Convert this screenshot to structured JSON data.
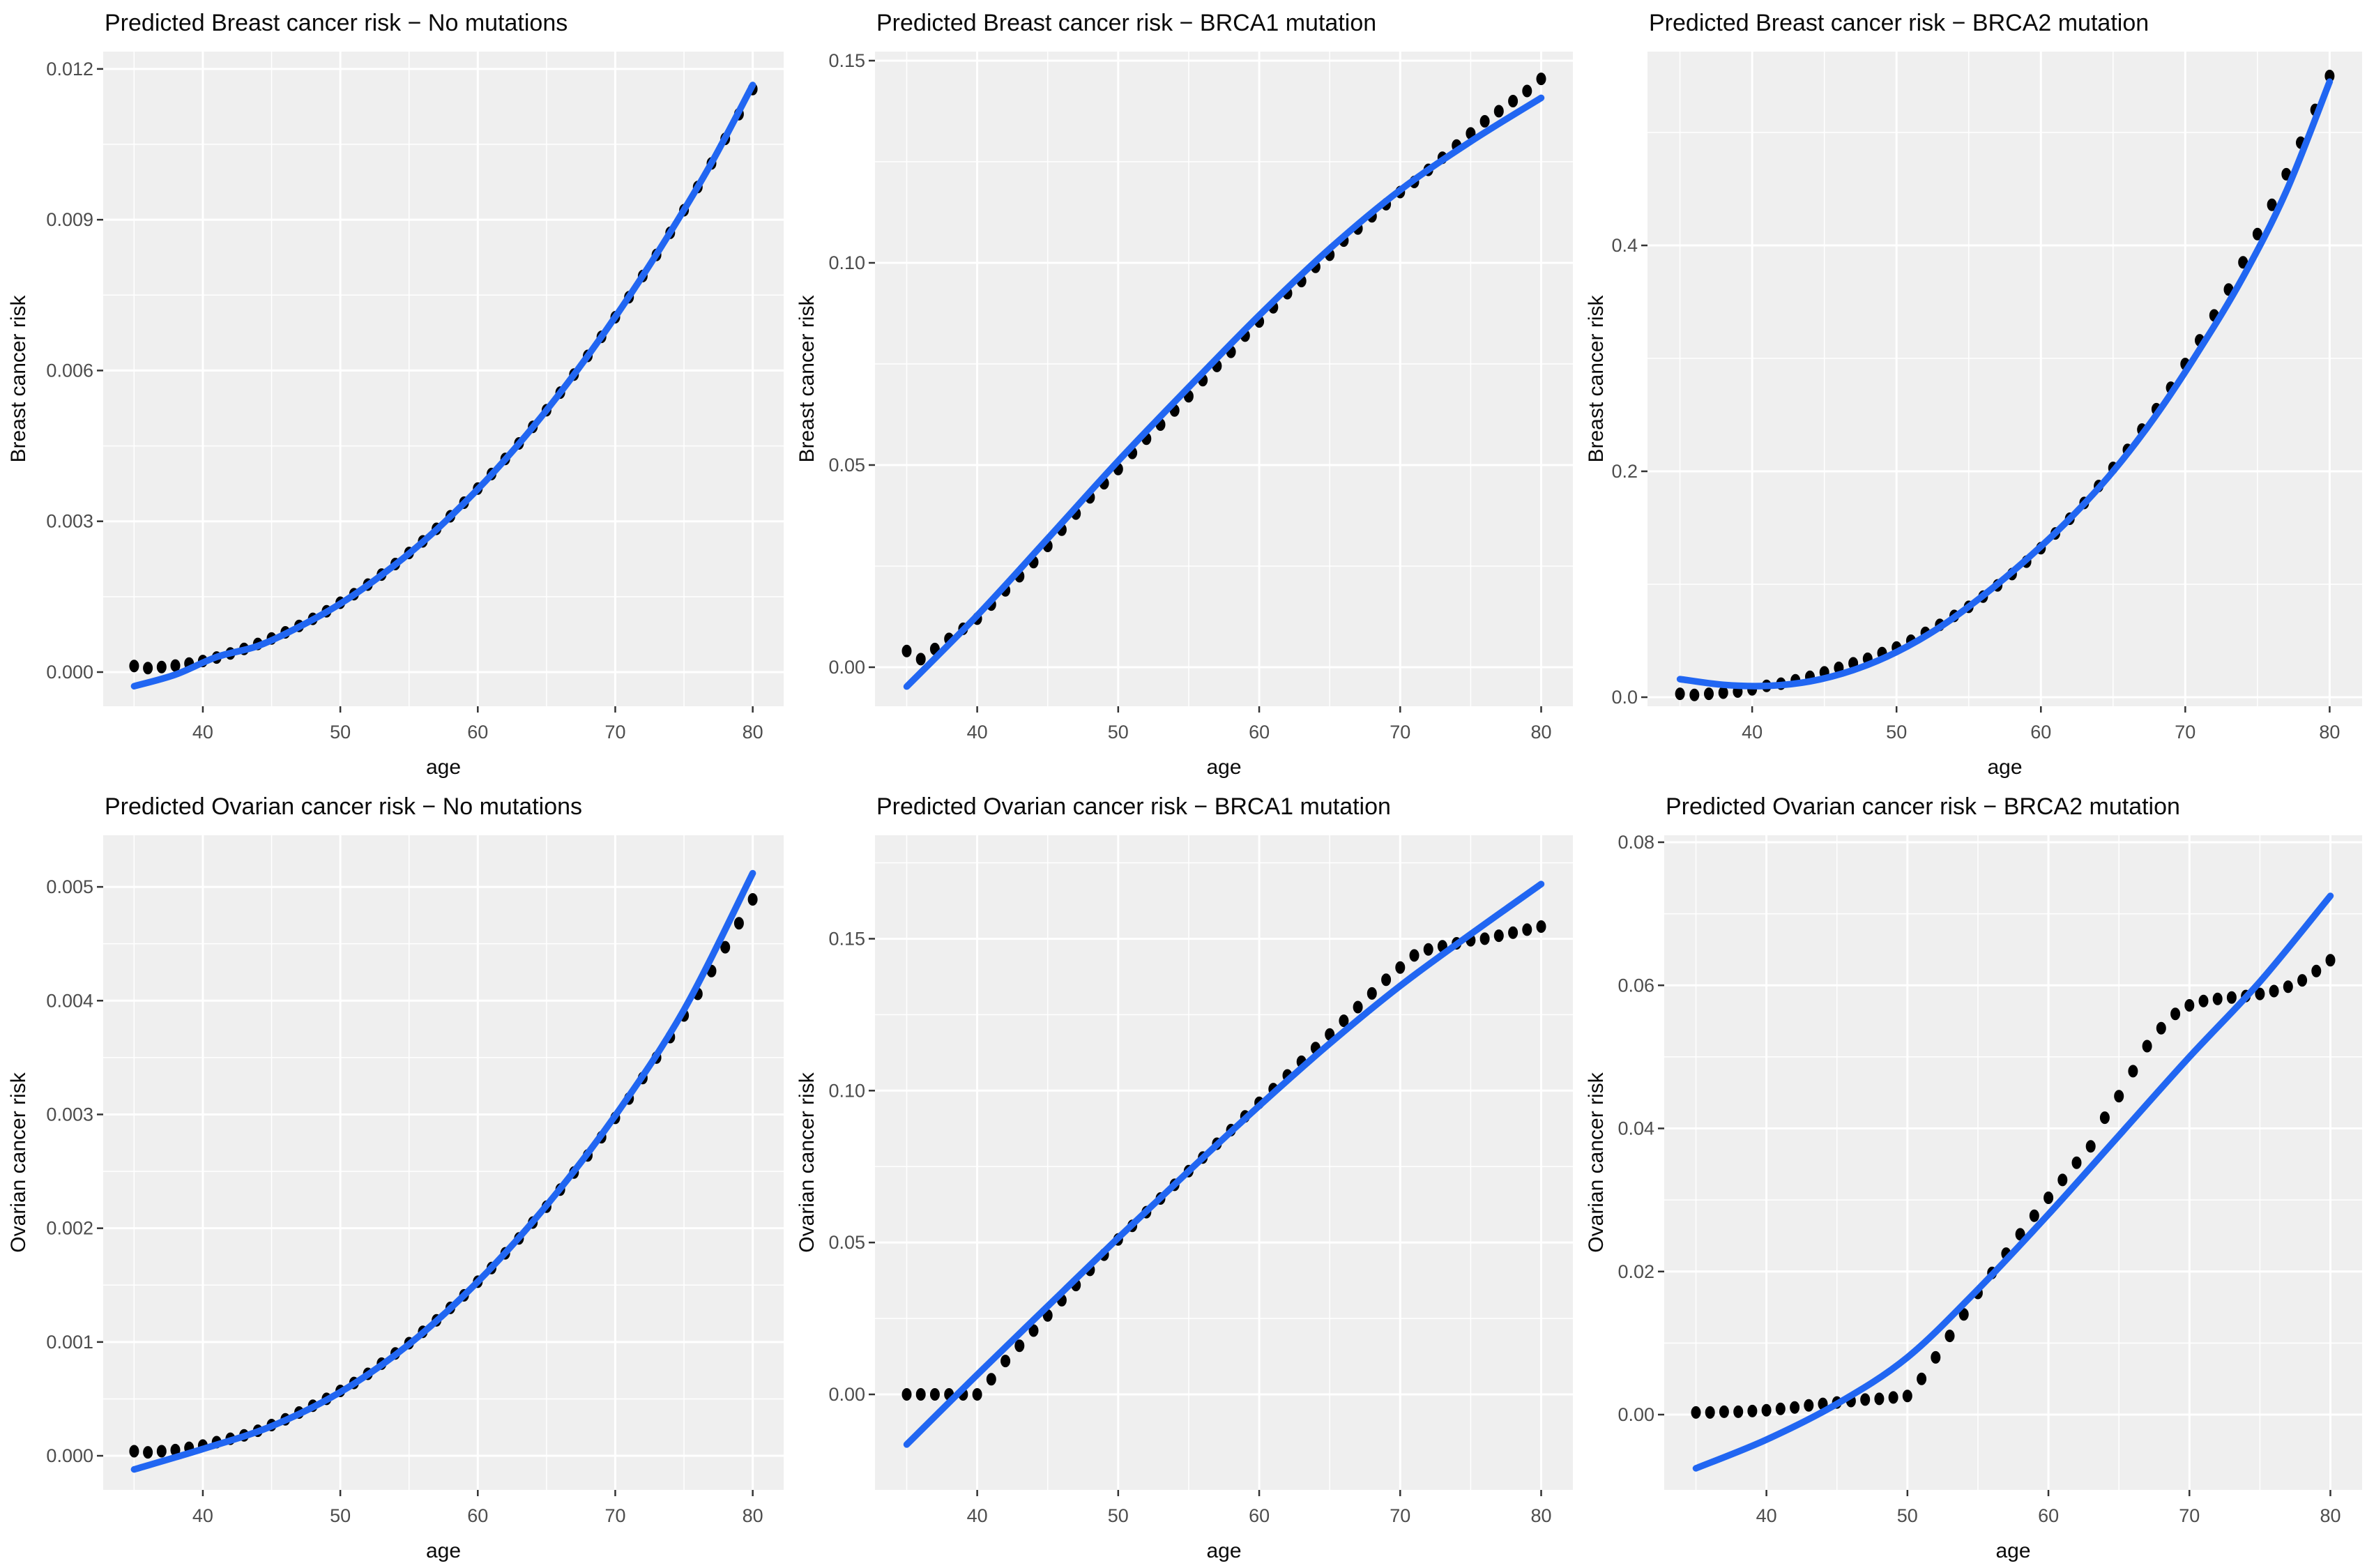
{
  "figure": {
    "rows": 2,
    "cols": 3,
    "background": "#ffffff"
  },
  "styles": {
    "panel_background": "#EFEFEF",
    "grid_color": "#FFFFFF",
    "dot_color": "#000000",
    "smooth_line_color": "#2166F2",
    "tick_mark_color": "#333333",
    "tick_label_color": "#4D4D4D",
    "title_color": "#0A0A0A",
    "axis_title_color": "#0A0A0A"
  },
  "ages": [
    35,
    36,
    37,
    38,
    39,
    40,
    41,
    42,
    43,
    44,
    45,
    46,
    47,
    48,
    49,
    50,
    51,
    52,
    53,
    54,
    55,
    56,
    57,
    58,
    59,
    60,
    61,
    62,
    63,
    64,
    65,
    66,
    67,
    68,
    69,
    70,
    71,
    72,
    73,
    74,
    75,
    76,
    77,
    78,
    79,
    80
  ],
  "chart_data": [
    {
      "type": "scatter",
      "title": "Predicted Breast cancer risk − No mutations",
      "xlabel": "age",
      "ylabel": "Breast cancer risk",
      "xlim": [
        32.75,
        82.25
      ],
      "ylim": [
        -0.00068,
        0.012345
      ],
      "x_ticks": {
        "values": [
          40,
          50,
          60,
          70,
          80
        ],
        "labels": [
          "40",
          "50",
          "60",
          "70",
          "80"
        ]
      },
      "x_minor": [
        35,
        45,
        55,
        65,
        75
      ],
      "y_ticks": {
        "values": [
          0,
          0.003,
          0.006,
          0.009,
          0.012
        ],
        "labels": [
          "0.000",
          "0.003",
          "0.006",
          "0.009",
          "0.012"
        ]
      },
      "y_minor": [
        0.0015,
        0.0045,
        0.0075,
        0.0105
      ],
      "points": [
        0.00012,
        8e-05,
        0.0001,
        0.00013,
        0.00017,
        0.00022,
        0.00029,
        0.00037,
        0.00046,
        0.00056,
        0.00067,
        0.00079,
        0.00092,
        0.00106,
        0.00121,
        0.00138,
        0.00155,
        0.00174,
        0.00194,
        0.00215,
        0.00237,
        0.0026,
        0.00285,
        0.0031,
        0.00337,
        0.00365,
        0.00394,
        0.00424,
        0.00455,
        0.00488,
        0.00521,
        0.00556,
        0.00592,
        0.00629,
        0.00667,
        0.00706,
        0.00746,
        0.00788,
        0.0083,
        0.00874,
        0.00919,
        0.00965,
        0.01012,
        0.01061,
        0.0111,
        0.0116
      ],
      "smooth_line": {
        "x": [
          35,
          38,
          41,
          44,
          47,
          50,
          53,
          56,
          59,
          62,
          65,
          68,
          71,
          74,
          77,
          80
        ],
        "y": [
          -0.00028,
          -5e-05,
          0.0003,
          0.00052,
          0.0009,
          0.00136,
          0.00193,
          0.00259,
          0.00336,
          0.00423,
          0.00521,
          0.00629,
          0.00747,
          0.00875,
          0.01013,
          0.01168
        ]
      }
    },
    {
      "type": "scatter",
      "title": "Predicted Breast cancer risk − BRCA1 mutation",
      "xlabel": "age",
      "ylabel": "Breast cancer risk",
      "xlim": [
        32.75,
        82.25
      ],
      "ylim": [
        -0.009655,
        0.152241
      ],
      "x_ticks": {
        "values": [
          40,
          50,
          60,
          70,
          80
        ],
        "labels": [
          "40",
          "50",
          "60",
          "70",
          "80"
        ]
      },
      "x_minor": [
        35,
        45,
        55,
        65,
        75
      ],
      "y_ticks": {
        "values": [
          0,
          0.05,
          0.1,
          0.15
        ],
        "labels": [
          "0.00",
          "0.05",
          "0.10",
          "0.15"
        ]
      },
      "y_minor": [
        0.025,
        0.075,
        0.125
      ],
      "points": [
        0.004,
        0.002,
        0.0045,
        0.007,
        0.0095,
        0.012,
        0.0155,
        0.019,
        0.0225,
        0.026,
        0.03,
        0.034,
        0.038,
        0.042,
        0.0455,
        0.049,
        0.053,
        0.0565,
        0.06,
        0.0635,
        0.067,
        0.071,
        0.0745,
        0.078,
        0.082,
        0.0855,
        0.089,
        0.0925,
        0.0955,
        0.099,
        0.102,
        0.1055,
        0.1085,
        0.1115,
        0.1145,
        0.1175,
        0.12,
        0.123,
        0.126,
        0.129,
        0.132,
        0.135,
        0.1375,
        0.14,
        0.1425,
        0.1455
      ],
      "smooth_line": {
        "x": [
          35,
          40,
          45,
          50,
          55,
          60,
          65,
          70,
          75,
          80
        ],
        "y": [
          -0.0048,
          0.0128,
          0.0318,
          0.051,
          0.0692,
          0.087,
          0.1035,
          0.118,
          0.13,
          0.1408
        ]
      }
    },
    {
      "type": "scatter",
      "title": "Predicted Breast cancer risk − BRCA2 mutation",
      "xlabel": "age",
      "ylabel": "Breast cancer risk",
      "xlim": [
        32.75,
        82.25
      ],
      "ylim": [
        -0.008025,
        0.571605
      ],
      "x_ticks": {
        "values": [
          40,
          50,
          60,
          70,
          80
        ],
        "labels": [
          "40",
          "50",
          "60",
          "70",
          "80"
        ]
      },
      "x_minor": [
        35,
        45,
        55,
        65,
        75
      ],
      "y_ticks": {
        "values": [
          0,
          0.2,
          0.4
        ],
        "labels": [
          "0.0",
          "0.2",
          "0.4"
        ]
      },
      "y_minor": [
        0.1,
        0.3,
        0.5
      ],
      "points": [
        0.003,
        0.002,
        0.003,
        0.004,
        0.005,
        0.007,
        0.01,
        0.012,
        0.015,
        0.018,
        0.022,
        0.026,
        0.03,
        0.034,
        0.039,
        0.044,
        0.05,
        0.057,
        0.064,
        0.072,
        0.08,
        0.089,
        0.099,
        0.109,
        0.12,
        0.132,
        0.145,
        0.158,
        0.172,
        0.187,
        0.203,
        0.219,
        0.237,
        0.255,
        0.274,
        0.295,
        0.316,
        0.338,
        0.361,
        0.385,
        0.41,
        0.436,
        0.463,
        0.491,
        0.52,
        0.55
      ],
      "smooth_line": {
        "x": [
          35,
          38,
          41,
          44,
          47,
          50,
          53,
          56,
          59,
          62,
          65,
          68,
          71,
          74,
          77,
          80
        ],
        "y": [
          0.016,
          0.011,
          0.01,
          0.014,
          0.024,
          0.04,
          0.062,
          0.09,
          0.122,
          0.158,
          0.2,
          0.25,
          0.308,
          0.372,
          0.448,
          0.545
        ]
      }
    },
    {
      "type": "scatter",
      "title": "Predicted Ovarian cancer risk − No mutations",
      "xlabel": "age",
      "ylabel": "Ovarian cancer risk",
      "xlim": [
        32.75,
        82.25
      ],
      "ylim": [
        -0.0003,
        0.005454
      ],
      "x_ticks": {
        "values": [
          40,
          50,
          60,
          70,
          80
        ],
        "labels": [
          "40",
          "50",
          "60",
          "70",
          "80"
        ]
      },
      "x_minor": [
        35,
        45,
        55,
        65,
        75
      ],
      "y_ticks": {
        "values": [
          0,
          0.001,
          0.002,
          0.003,
          0.004,
          0.005
        ],
        "labels": [
          "0.000",
          "0.001",
          "0.002",
          "0.003",
          "0.004",
          "0.005"
        ]
      },
      "y_minor": [
        0.0005,
        0.0015,
        0.0025,
        0.0035,
        0.0045
      ],
      "points": [
        4e-05,
        3e-05,
        4e-05,
        5e-05,
        7e-05,
        9e-05,
        0.00012,
        0.00015,
        0.00018,
        0.00022,
        0.00027,
        0.00032,
        0.00038,
        0.00044,
        0.0005,
        0.00057,
        0.00064,
        0.00072,
        0.00081,
        0.0009,
        0.00099,
        0.00109,
        0.00119,
        0.0013,
        0.00141,
        0.00153,
        0.00165,
        0.00178,
        0.00191,
        0.00205,
        0.00219,
        0.00234,
        0.00249,
        0.00264,
        0.0028,
        0.00297,
        0.00314,
        0.00332,
        0.0035,
        0.00368,
        0.00387,
        0.00406,
        0.00426,
        0.00447,
        0.00468,
        0.00489
      ],
      "smooth_line": {
        "x": [
          35,
          40,
          45,
          50,
          55,
          60,
          65,
          70,
          75,
          80
        ],
        "y": [
          -0.00012,
          6e-05,
          0.00026,
          0.00056,
          0.00098,
          0.00153,
          0.0022,
          0.00299,
          0.00392,
          0.00512
        ]
      }
    },
    {
      "type": "scatter",
      "title": "Predicted Ovarian cancer risk − BRCA1 mutation",
      "xlabel": "age",
      "ylabel": "Ovarian cancer risk",
      "xlim": [
        32.75,
        82.25
      ],
      "ylim": [
        -0.031444,
        0.184071
      ],
      "x_ticks": {
        "values": [
          40,
          50,
          60,
          70,
          80
        ],
        "labels": [
          "40",
          "50",
          "60",
          "70",
          "80"
        ]
      },
      "x_minor": [
        35,
        45,
        55,
        65,
        75
      ],
      "y_ticks": {
        "values": [
          0,
          0.05,
          0.1,
          0.15
        ],
        "labels": [
          "0.00",
          "0.05",
          "0.10",
          "0.15"
        ]
      },
      "y_minor": [
        0.025,
        0.075,
        0.125,
        0.175
      ],
      "points": [
        0.0,
        0.0,
        0.0,
        0.0,
        0.0,
        0.0,
        0.005,
        0.011,
        0.016,
        0.021,
        0.026,
        0.031,
        0.036,
        0.041,
        0.046,
        0.051,
        0.0555,
        0.06,
        0.0645,
        0.069,
        0.0735,
        0.078,
        0.0825,
        0.087,
        0.0915,
        0.096,
        0.1005,
        0.105,
        0.1095,
        0.114,
        0.1185,
        0.123,
        0.1275,
        0.132,
        0.1365,
        0.1405,
        0.1445,
        0.1465,
        0.1475,
        0.1485,
        0.1495,
        0.15,
        0.151,
        0.152,
        0.153,
        0.154
      ],
      "smooth_line": {
        "x": [
          35,
          40,
          45,
          50,
          55,
          60,
          65,
          70,
          75,
          80
        ],
        "y": [
          -0.0165,
          0.0065,
          0.029,
          0.0515,
          0.0735,
          0.095,
          0.1155,
          0.1345,
          0.1515,
          0.168
        ]
      }
    },
    {
      "type": "scatter",
      "title": "Predicted Ovarian cancer risk − BRCA2 mutation",
      "xlabel": "age",
      "ylabel": "Ovarian cancer risk",
      "xlim": [
        32.75,
        82.25
      ],
      "ylim": [
        -0.010524,
        0.080975
      ],
      "x_ticks": {
        "values": [
          40,
          50,
          60,
          70,
          80
        ],
        "labels": [
          "40",
          "50",
          "60",
          "70",
          "80"
        ]
      },
      "x_minor": [
        35,
        45,
        55,
        65,
        75
      ],
      "y_ticks": {
        "values": [
          0,
          0.02,
          0.04,
          0.06,
          0.08
        ],
        "labels": [
          "0.00",
          "0.02",
          "0.04",
          "0.06",
          "0.08"
        ]
      },
      "y_minor": [
        0.01,
        0.03,
        0.05,
        0.07
      ],
      "points": [
        0.0003,
        0.0003,
        0.0004,
        0.0004,
        0.0005,
        0.0006,
        0.0008,
        0.001,
        0.0013,
        0.0015,
        0.0017,
        0.0019,
        0.0021,
        0.0022,
        0.0024,
        0.0026,
        0.005,
        0.008,
        0.011,
        0.014,
        0.017,
        0.0198,
        0.0225,
        0.0252,
        0.0278,
        0.0303,
        0.0328,
        0.0352,
        0.0375,
        0.0415,
        0.0445,
        0.048,
        0.0515,
        0.054,
        0.056,
        0.0572,
        0.0578,
        0.0581,
        0.0583,
        0.0585,
        0.0588,
        0.0592,
        0.0598,
        0.0607,
        0.062,
        0.0635
      ],
      "smooth_line": {
        "x": [
          35,
          40,
          45,
          50,
          55,
          60,
          65,
          70,
          75,
          80
        ],
        "y": [
          -0.0075,
          -0.0035,
          0.0015,
          0.008,
          0.0175,
          0.028,
          0.039,
          0.05,
          0.0605,
          0.0725
        ]
      }
    }
  ]
}
